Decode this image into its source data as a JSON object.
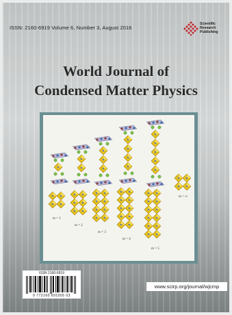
{
  "issue_line": "ISSN: 2160-6919   Volume 6, Number 3, August 2016",
  "publisher": {
    "lines": [
      "Scientific",
      "Research",
      "Publishing"
    ],
    "logo_icon": "diamond-dots-logo",
    "brand_color": "#c1272d"
  },
  "journal": {
    "title_line1": "World Journal of",
    "title_line2": "Condensed Matter Physics"
  },
  "figure": {
    "labels": [
      "m = 1",
      "m = 2",
      "m = 3",
      "m = 4",
      "m = 5",
      "m = ∞"
    ]
  },
  "barcode": {
    "issn_label": "ISSN 2160-6919",
    "number": "9 772160 691005 03"
  },
  "website": "www.scirp.org/journal/wjcmp"
}
